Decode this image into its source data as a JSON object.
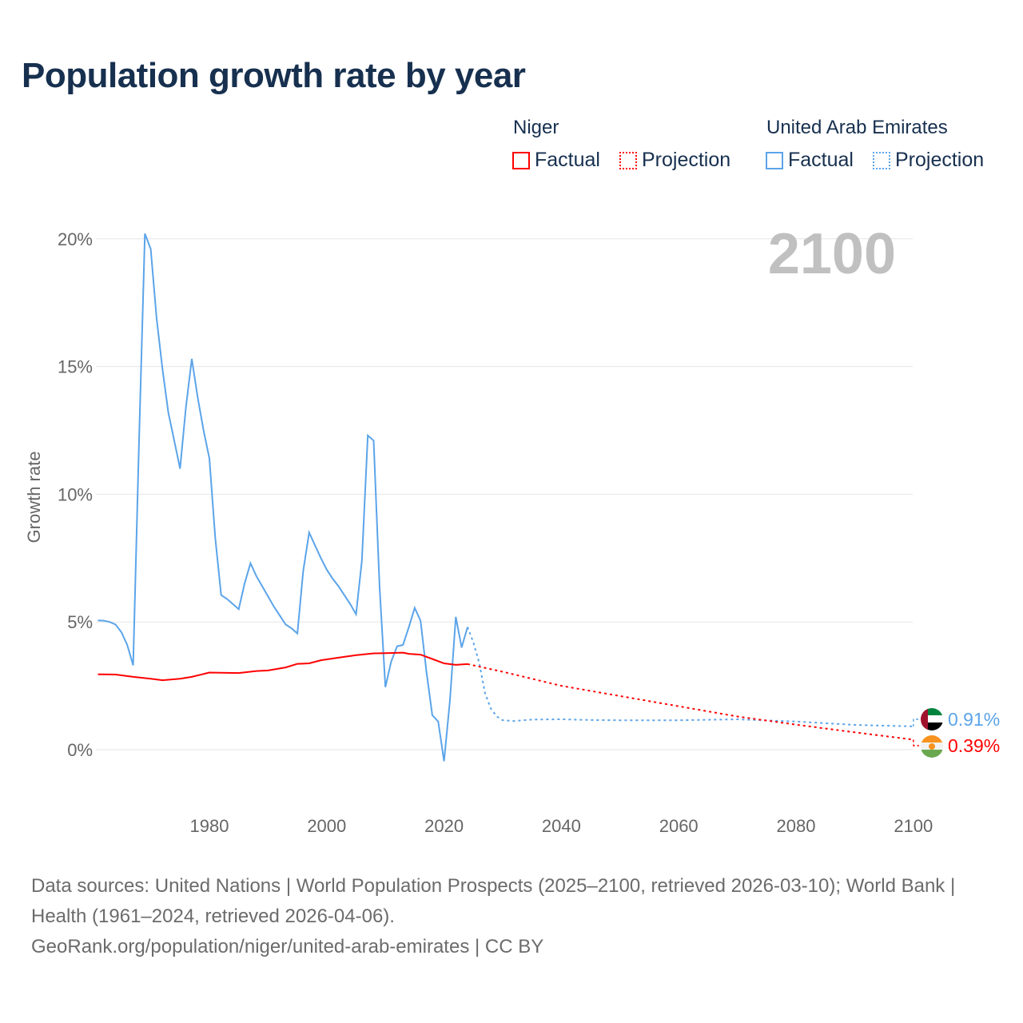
{
  "title": "Population growth rate by year",
  "legend": {
    "groups": [
      {
        "name": "Niger",
        "color": "#ff0000",
        "factual": "Factual",
        "projection": "Projection"
      },
      {
        "name": "United Arab Emirates",
        "color": "#5ba4ea",
        "factual": "Factual",
        "projection": "Projection"
      }
    ]
  },
  "footer": {
    "sources": "Data sources: United Nations | World Population Prospects (2025–2100, retrieved 2026-03-10); World Bank | Health (1961–2024, retrieved 2026-04-06).",
    "credit": "GeoRank.org/population/niger/united-arab-emirates | CC BY"
  },
  "chart_data": {
    "type": "line",
    "title": "Population growth rate by year",
    "ylabel": "Growth rate",
    "xlabel": "",
    "xlim": [
      1961,
      2100
    ],
    "ylim": [
      -1,
      22
    ],
    "year_label": "2100",
    "x_ticks": [
      1980,
      2000,
      2020,
      2040,
      2060,
      2080,
      2100
    ],
    "y_ticks": [
      {
        "v": 0,
        "label": "0%"
      },
      {
        "v": 5,
        "label": "5%"
      },
      {
        "v": 10,
        "label": "10%"
      },
      {
        "v": 15,
        "label": "15%"
      },
      {
        "v": 20,
        "label": "20%"
      }
    ],
    "series": [
      {
        "name": "United Arab Emirates",
        "color": "#5ba4ea",
        "end_label": "0.91%",
        "factual": [
          [
            1961,
            5.06
          ],
          [
            1962,
            5.05
          ],
          [
            1963,
            5.0
          ],
          [
            1964,
            4.9
          ],
          [
            1965,
            4.6
          ],
          [
            1966,
            4.1
          ],
          [
            1967,
            3.3
          ],
          [
            1968,
            12.0
          ],
          [
            1969,
            20.2
          ],
          [
            1970,
            19.6
          ],
          [
            1971,
            16.9
          ],
          [
            1972,
            14.9
          ],
          [
            1973,
            13.2
          ],
          [
            1974,
            12.1
          ],
          [
            1975,
            11.0
          ],
          [
            1976,
            13.4
          ],
          [
            1977,
            15.3
          ],
          [
            1978,
            13.8
          ],
          [
            1979,
            12.5
          ],
          [
            1980,
            11.4
          ],
          [
            1981,
            8.3
          ],
          [
            1982,
            6.05
          ],
          [
            1983,
            5.9
          ],
          [
            1984,
            5.7
          ],
          [
            1985,
            5.5
          ],
          [
            1986,
            6.5
          ],
          [
            1987,
            7.3
          ],
          [
            1988,
            6.8
          ],
          [
            1989,
            6.4
          ],
          [
            1990,
            6.0
          ],
          [
            1991,
            5.6
          ],
          [
            1992,
            5.25
          ],
          [
            1993,
            4.9
          ],
          [
            1994,
            4.75
          ],
          [
            1995,
            4.55
          ],
          [
            1996,
            7.0
          ],
          [
            1997,
            8.5
          ],
          [
            1998,
            8.0
          ],
          [
            1999,
            7.5
          ],
          [
            2000,
            7.05
          ],
          [
            2001,
            6.7
          ],
          [
            2002,
            6.4
          ],
          [
            2003,
            6.05
          ],
          [
            2004,
            5.7
          ],
          [
            2005,
            5.3
          ],
          [
            2006,
            7.4
          ],
          [
            2007,
            12.3
          ],
          [
            2008,
            12.1
          ],
          [
            2009,
            6.4
          ],
          [
            2010,
            2.45
          ],
          [
            2011,
            3.45
          ],
          [
            2012,
            4.05
          ],
          [
            2013,
            4.1
          ],
          [
            2014,
            4.8
          ],
          [
            2015,
            5.55
          ],
          [
            2016,
            5.05
          ],
          [
            2017,
            3.05
          ],
          [
            2018,
            1.35
          ],
          [
            2019,
            1.1
          ],
          [
            2020,
            -0.45
          ],
          [
            2021,
            1.9
          ],
          [
            2022,
            5.2
          ],
          [
            2023,
            4.0
          ],
          [
            2024,
            4.8
          ]
        ],
        "projection": [
          [
            2024,
            4.8
          ],
          [
            2025,
            4.2
          ],
          [
            2026,
            3.4
          ],
          [
            2027,
            2.2
          ],
          [
            2028,
            1.6
          ],
          [
            2029,
            1.3
          ],
          [
            2030,
            1.15
          ],
          [
            2032,
            1.12
          ],
          [
            2035,
            1.18
          ],
          [
            2040,
            1.19
          ],
          [
            2045,
            1.16
          ],
          [
            2050,
            1.15
          ],
          [
            2060,
            1.15
          ],
          [
            2070,
            1.19
          ],
          [
            2080,
            1.1
          ],
          [
            2090,
            0.97
          ],
          [
            2100,
            0.91
          ]
        ]
      },
      {
        "name": "Niger",
        "color": "#ff0000",
        "end_label": "0.39%",
        "factual": [
          [
            1961,
            2.95
          ],
          [
            1964,
            2.94
          ],
          [
            1967,
            2.85
          ],
          [
            1970,
            2.78
          ],
          [
            1972,
            2.72
          ],
          [
            1975,
            2.78
          ],
          [
            1977,
            2.85
          ],
          [
            1980,
            3.02
          ],
          [
            1985,
            3.0
          ],
          [
            1988,
            3.08
          ],
          [
            1990,
            3.1
          ],
          [
            1993,
            3.22
          ],
          [
            1995,
            3.36
          ],
          [
            1997,
            3.38
          ],
          [
            1999,
            3.5
          ],
          [
            2002,
            3.6
          ],
          [
            2005,
            3.7
          ],
          [
            2008,
            3.77
          ],
          [
            2010,
            3.78
          ],
          [
            2013,
            3.8
          ],
          [
            2014,
            3.75
          ],
          [
            2016,
            3.72
          ],
          [
            2018,
            3.55
          ],
          [
            2020,
            3.38
          ],
          [
            2022,
            3.32
          ],
          [
            2024,
            3.35
          ]
        ],
        "projection": [
          [
            2024,
            3.35
          ],
          [
            2025,
            3.3
          ],
          [
            2030,
            3.05
          ],
          [
            2040,
            2.5
          ],
          [
            2050,
            2.1
          ],
          [
            2060,
            1.7
          ],
          [
            2070,
            1.3
          ],
          [
            2080,
            0.98
          ],
          [
            2090,
            0.68
          ],
          [
            2100,
            0.39
          ]
        ]
      }
    ]
  }
}
